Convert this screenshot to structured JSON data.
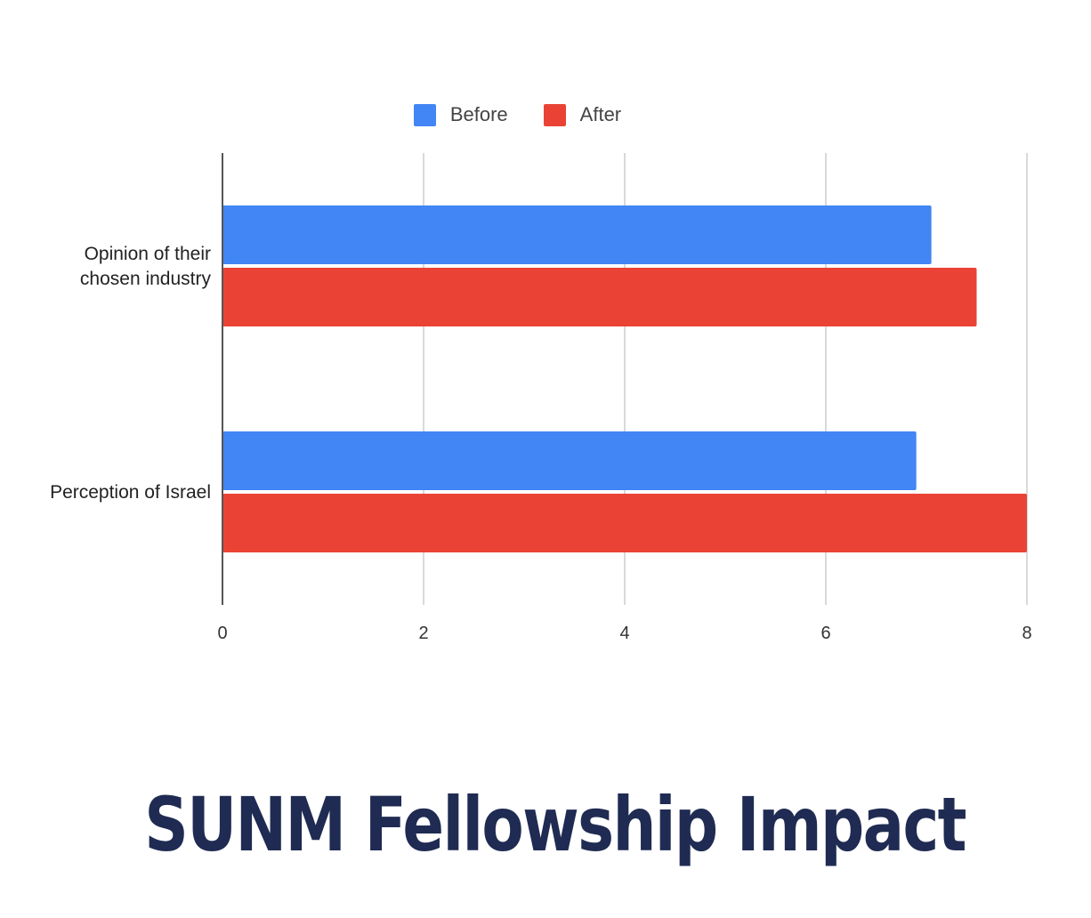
{
  "chart_data": {
    "type": "bar",
    "orientation": "horizontal",
    "title": "SUNM Fellowship Impact",
    "categories": [
      "Opinion of their chosen industry",
      "Perception of Israel"
    ],
    "category_lines": [
      [
        "Opinion of their",
        "chosen industry"
      ],
      [
        "Perception of Israel"
      ]
    ],
    "series": [
      {
        "name": "Before",
        "color": "#4285f4",
        "values": [
          7.05,
          6.9
        ]
      },
      {
        "name": "After",
        "color": "#ea4335",
        "values": [
          7.5,
          8.0
        ]
      }
    ],
    "xlim": [
      0,
      8
    ],
    "xticks": [
      "0",
      "2",
      "4",
      "6",
      "8"
    ],
    "grid": true,
    "legend_position": "top"
  }
}
